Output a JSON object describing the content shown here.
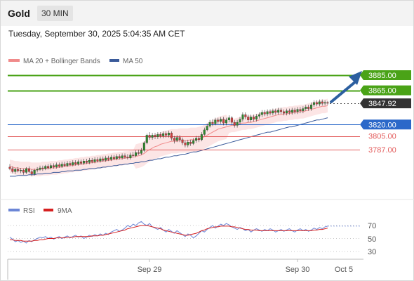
{
  "header": {
    "symbol": "Gold",
    "timeframe": "30 MIN"
  },
  "datetime": "Tuesday, September 30, 2025 5:04:35 AM CET",
  "legend": {
    "ma_label": "MA 20 + Bollinger Bands",
    "ma50_label": "MA 50",
    "rsi_label": "RSI",
    "ma9_label": "9MA"
  },
  "colors": {
    "ma20": "#f08a8a",
    "ma50": "#3a5a9a",
    "bands_fill": "#fbe1e1",
    "resistance": "#4aa317",
    "support_blue": "#2b68c9",
    "support_red": "#e35d5d",
    "arrow": "#2c5fa0",
    "rsi": "#6c86d6",
    "rsi_ma": "#d62020",
    "bull": "#2f8a2f",
    "bear": "#d04040"
  },
  "chart_data": [
    {
      "type": "line",
      "subtype": "candlestick",
      "ylim": [
        3735,
        3900
      ],
      "levels": [
        {
          "value": 3885.0,
          "label": "3885.00",
          "kind": "resistance"
        },
        {
          "value": 3865.0,
          "label": "3865.00",
          "kind": "resistance"
        },
        {
          "value": 3847.92,
          "label": "3847.92",
          "kind": "current"
        },
        {
          "value": 3820.0,
          "label": "3820.00",
          "kind": "support"
        },
        {
          "value": 3805.0,
          "label": "3805.00",
          "kind": "support-minor"
        },
        {
          "value": 3787.0,
          "label": "3787.00",
          "kind": "support-minor"
        }
      ],
      "x_ticks": [
        "Sep 29",
        "Sep 30",
        "Oct 5"
      ],
      "candles": [
        [
          3764,
          3762,
          3768,
          3760
        ],
        [
          3762,
          3758,
          3765,
          3756
        ],
        [
          3758,
          3761,
          3763,
          3755
        ],
        [
          3761,
          3759,
          3764,
          3757
        ],
        [
          3759,
          3760,
          3763,
          3756
        ],
        [
          3760,
          3757,
          3762,
          3754
        ],
        [
          3757,
          3762,
          3764,
          3755
        ],
        [
          3762,
          3758,
          3765,
          3756
        ],
        [
          3758,
          3755,
          3761,
          3752
        ],
        [
          3755,
          3760,
          3762,
          3753
        ],
        [
          3760,
          3761,
          3764,
          3757
        ],
        [
          3761,
          3763,
          3766,
          3759
        ],
        [
          3763,
          3762,
          3766,
          3759
        ],
        [
          3762,
          3765,
          3767,
          3760
        ],
        [
          3765,
          3763,
          3768,
          3761
        ],
        [
          3763,
          3766,
          3769,
          3761
        ],
        [
          3766,
          3764,
          3769,
          3762
        ],
        [
          3764,
          3767,
          3770,
          3762
        ],
        [
          3767,
          3765,
          3770,
          3763
        ],
        [
          3765,
          3768,
          3771,
          3763
        ],
        [
          3768,
          3766,
          3771,
          3764
        ],
        [
          3766,
          3769,
          3772,
          3764
        ],
        [
          3769,
          3767,
          3772,
          3765
        ],
        [
          3767,
          3770,
          3773,
          3765
        ],
        [
          3770,
          3768,
          3773,
          3766
        ],
        [
          3768,
          3771,
          3774,
          3766
        ],
        [
          3771,
          3769,
          3774,
          3767
        ],
        [
          3769,
          3772,
          3775,
          3767
        ],
        [
          3772,
          3770,
          3775,
          3768
        ],
        [
          3770,
          3773,
          3776,
          3768
        ],
        [
          3773,
          3771,
          3776,
          3769
        ],
        [
          3771,
          3774,
          3777,
          3769
        ],
        [
          3774,
          3772,
          3777,
          3770
        ],
        [
          3772,
          3775,
          3778,
          3770
        ],
        [
          3775,
          3773,
          3778,
          3771
        ],
        [
          3773,
          3776,
          3779,
          3771
        ],
        [
          3776,
          3774,
          3779,
          3772
        ],
        [
          3774,
          3777,
          3780,
          3772
        ],
        [
          3777,
          3775,
          3780,
          3773
        ],
        [
          3775,
          3778,
          3781,
          3773
        ],
        [
          3778,
          3776,
          3781,
          3774
        ],
        [
          3776,
          3779,
          3782,
          3774
        ],
        [
          3779,
          3777,
          3782,
          3775
        ],
        [
          3777,
          3776,
          3781,
          3774
        ],
        [
          3776,
          3780,
          3783,
          3774
        ],
        [
          3780,
          3779,
          3784,
          3777
        ],
        [
          3779,
          3783,
          3786,
          3777
        ],
        [
          3783,
          3782,
          3787,
          3780
        ],
        [
          3782,
          3786,
          3789,
          3780
        ],
        [
          3786,
          3796,
          3798,
          3784
        ],
        [
          3796,
          3806,
          3808,
          3794
        ],
        [
          3806,
          3803,
          3810,
          3800
        ],
        [
          3803,
          3806,
          3809,
          3800
        ],
        [
          3806,
          3804,
          3809,
          3801
        ],
        [
          3804,
          3807,
          3810,
          3801
        ],
        [
          3807,
          3805,
          3810,
          3802
        ],
        [
          3805,
          3808,
          3811,
          3802
        ],
        [
          3808,
          3806,
          3811,
          3803
        ],
        [
          3806,
          3809,
          3812,
          3803
        ],
        [
          3809,
          3802,
          3811,
          3799
        ],
        [
          3802,
          3799,
          3805,
          3795
        ],
        [
          3799,
          3803,
          3806,
          3797
        ],
        [
          3803,
          3800,
          3806,
          3797
        ],
        [
          3800,
          3796,
          3803,
          3793
        ],
        [
          3796,
          3793,
          3799,
          3790
        ],
        [
          3793,
          3797,
          3800,
          3790
        ],
        [
          3797,
          3795,
          3800,
          3792
        ],
        [
          3795,
          3799,
          3802,
          3793
        ],
        [
          3799,
          3802,
          3805,
          3796
        ],
        [
          3802,
          3800,
          3805,
          3797
        ],
        [
          3800,
          3807,
          3810,
          3798
        ],
        [
          3807,
          3813,
          3816,
          3805
        ],
        [
          3813,
          3818,
          3821,
          3811
        ],
        [
          3818,
          3823,
          3826,
          3816
        ],
        [
          3823,
          3821,
          3827,
          3818
        ],
        [
          3821,
          3826,
          3829,
          3819
        ],
        [
          3826,
          3824,
          3829,
          3821
        ],
        [
          3824,
          3827,
          3830,
          3821
        ],
        [
          3827,
          3822,
          3830,
          3819
        ],
        [
          3822,
          3826,
          3829,
          3819
        ],
        [
          3826,
          3829,
          3832,
          3823
        ],
        [
          3829,
          3823,
          3831,
          3820
        ],
        [
          3823,
          3819,
          3826,
          3816
        ],
        [
          3819,
          3823,
          3826,
          3816
        ],
        [
          3823,
          3827,
          3830,
          3820
        ],
        [
          3827,
          3833,
          3836,
          3824
        ],
        [
          3833,
          3830,
          3836,
          3827
        ],
        [
          3830,
          3826,
          3833,
          3823
        ],
        [
          3826,
          3830,
          3833,
          3823
        ],
        [
          3830,
          3827,
          3833,
          3824
        ],
        [
          3827,
          3831,
          3834,
          3824
        ],
        [
          3831,
          3833,
          3836,
          3828
        ],
        [
          3833,
          3836,
          3839,
          3830
        ],
        [
          3836,
          3834,
          3839,
          3831
        ],
        [
          3834,
          3837,
          3840,
          3831
        ],
        [
          3837,
          3835,
          3840,
          3832
        ],
        [
          3835,
          3838,
          3841,
          3832
        ],
        [
          3838,
          3836,
          3841,
          3833
        ],
        [
          3836,
          3839,
          3842,
          3833
        ],
        [
          3839,
          3837,
          3842,
          3834
        ],
        [
          3837,
          3835,
          3840,
          3832
        ],
        [
          3835,
          3838,
          3841,
          3832
        ],
        [
          3838,
          3836,
          3841,
          3833
        ],
        [
          3836,
          3839,
          3842,
          3833
        ],
        [
          3839,
          3837,
          3842,
          3834
        ],
        [
          3837,
          3840,
          3843,
          3834
        ],
        [
          3840,
          3838,
          3843,
          3835
        ],
        [
          3838,
          3841,
          3844,
          3835
        ],
        [
          3841,
          3843,
          3846,
          3838
        ],
        [
          3843,
          3841,
          3846,
          3838
        ],
        [
          3841,
          3846,
          3849,
          3838
        ],
        [
          3846,
          3849,
          3852,
          3843
        ],
        [
          3849,
          3847,
          3852,
          3844
        ],
        [
          3847,
          3850,
          3853,
          3844
        ],
        [
          3850,
          3848,
          3853,
          3845
        ],
        [
          3848,
          3849,
          3852,
          3845
        ],
        [
          3849,
          3848,
          3851,
          3846
        ]
      ],
      "ma20": [
        3765,
        3764,
        3763,
        3763,
        3762,
        3762,
        3762,
        3762,
        3761,
        3761,
        3761,
        3761,
        3762,
        3762,
        3762,
        3763,
        3763,
        3763,
        3764,
        3764,
        3765,
        3765,
        3766,
        3766,
        3767,
        3767,
        3768,
        3768,
        3769,
        3769,
        3770,
        3770,
        3771,
        3771,
        3772,
        3772,
        3773,
        3773,
        3774,
        3774,
        3775,
        3775,
        3776,
        3776,
        3777,
        3777,
        3778,
        3779,
        3780,
        3782,
        3785,
        3787,
        3789,
        3791,
        3792,
        3794,
        3795,
        3796,
        3797,
        3798,
        3798,
        3798,
        3799,
        3799,
        3799,
        3799,
        3800,
        3800,
        3800,
        3801,
        3802,
        3804,
        3806,
        3808,
        3810,
        3812,
        3814,
        3815,
        3816,
        3817,
        3818,
        3819,
        3819,
        3820,
        3821,
        3822,
        3822,
        3823,
        3823,
        3824,
        3825,
        3826,
        3827,
        3828,
        3829,
        3830,
        3831,
        3832,
        3833,
        3833,
        3834,
        3834,
        3835,
        3835,
        3836,
        3836,
        3837,
        3837,
        3838,
        3839,
        3840,
        3841,
        3842,
        3843,
        3844,
        3844,
        3845
      ],
      "ma50": [
        3752,
        3752,
        3752,
        3753,
        3753,
        3753,
        3753,
        3754,
        3754,
        3754,
        3755,
        3755,
        3755,
        3756,
        3756,
        3756,
        3757,
        3757,
        3757,
        3758,
        3758,
        3759,
        3759,
        3759,
        3760,
        3760,
        3760,
        3761,
        3761,
        3762,
        3762,
        3762,
        3763,
        3763,
        3764,
        3764,
        3765,
        3765,
        3766,
        3766,
        3767,
        3767,
        3768,
        3768,
        3769,
        3769,
        3770,
        3770,
        3771,
        3771,
        3772,
        3773,
        3773,
        3774,
        3775,
        3775,
        3776,
        3777,
        3777,
        3778,
        3779,
        3779,
        3780,
        3781,
        3781,
        3782,
        3783,
        3784,
        3784,
        3785,
        3786,
        3787,
        3788,
        3789,
        3790,
        3791,
        3792,
        3793,
        3794,
        3795,
        3796,
        3797,
        3798,
        3799,
        3800,
        3801,
        3802,
        3803,
        3804,
        3805,
        3806,
        3807,
        3808,
        3809,
        3810,
        3810,
        3811,
        3812,
        3813,
        3814,
        3815,
        3816,
        3817,
        3817,
        3818,
        3819,
        3820,
        3821,
        3822,
        3823,
        3824,
        3825,
        3826,
        3826,
        3827,
        3828,
        3829
      ]
    },
    {
      "type": "line",
      "title": "RSI",
      "ylim": [
        20,
        80
      ],
      "y_ticks": [
        "70",
        "50",
        "30"
      ],
      "series": [
        {
          "name": "RSI",
          "values": [
            52,
            49,
            45,
            47,
            44,
            46,
            43,
            47,
            45,
            48,
            50,
            52,
            51,
            53,
            50,
            52,
            49,
            51,
            53,
            50,
            52,
            54,
            51,
            53,
            55,
            52,
            54,
            50,
            52,
            55,
            53,
            56,
            54,
            57,
            55,
            58,
            56,
            60,
            62,
            64,
            61,
            63,
            66,
            70,
            68,
            72,
            70,
            74,
            76,
            72,
            70,
            73,
            68,
            66,
            64,
            67,
            63,
            60,
            64,
            61,
            58,
            62,
            59,
            56,
            53,
            57,
            55,
            51,
            54,
            58,
            62,
            60,
            64,
            67,
            70,
            66,
            69,
            72,
            70,
            73,
            71,
            68,
            66,
            64,
            67,
            65,
            62,
            64,
            60,
            63,
            65,
            63,
            61,
            64,
            62,
            65,
            63,
            60,
            62,
            64,
            61,
            63,
            65,
            62,
            60,
            63,
            65,
            62,
            64,
            61,
            63,
            66,
            64,
            67,
            65,
            68,
            69
          ]
        },
        {
          "name": "9MA",
          "values": [
            48,
            48,
            47,
            47,
            47,
            46,
            46,
            46,
            46,
            47,
            47,
            48,
            48,
            49,
            50,
            50,
            50,
            51,
            51,
            51,
            51,
            52,
            52,
            52,
            53,
            53,
            53,
            53,
            53,
            53,
            54,
            54,
            54,
            55,
            55,
            56,
            57,
            58,
            59,
            60,
            61,
            62,
            63,
            65,
            66,
            67,
            68,
            69,
            70,
            70,
            70,
            69,
            68,
            67,
            66,
            65,
            63,
            62,
            61,
            60,
            59,
            58,
            57,
            56,
            55,
            55,
            56,
            57,
            58,
            60,
            62,
            63,
            65,
            66,
            67,
            68,
            68,
            69,
            69,
            69,
            69,
            68,
            68,
            67,
            66,
            65,
            64,
            64,
            63,
            63,
            63,
            62,
            62,
            62,
            62,
            62,
            62,
            62,
            62,
            62,
            62,
            62,
            62,
            62,
            62,
            62,
            62,
            62,
            62,
            62,
            62,
            63,
            63,
            64,
            64,
            65,
            66
          ]
        }
      ]
    }
  ]
}
